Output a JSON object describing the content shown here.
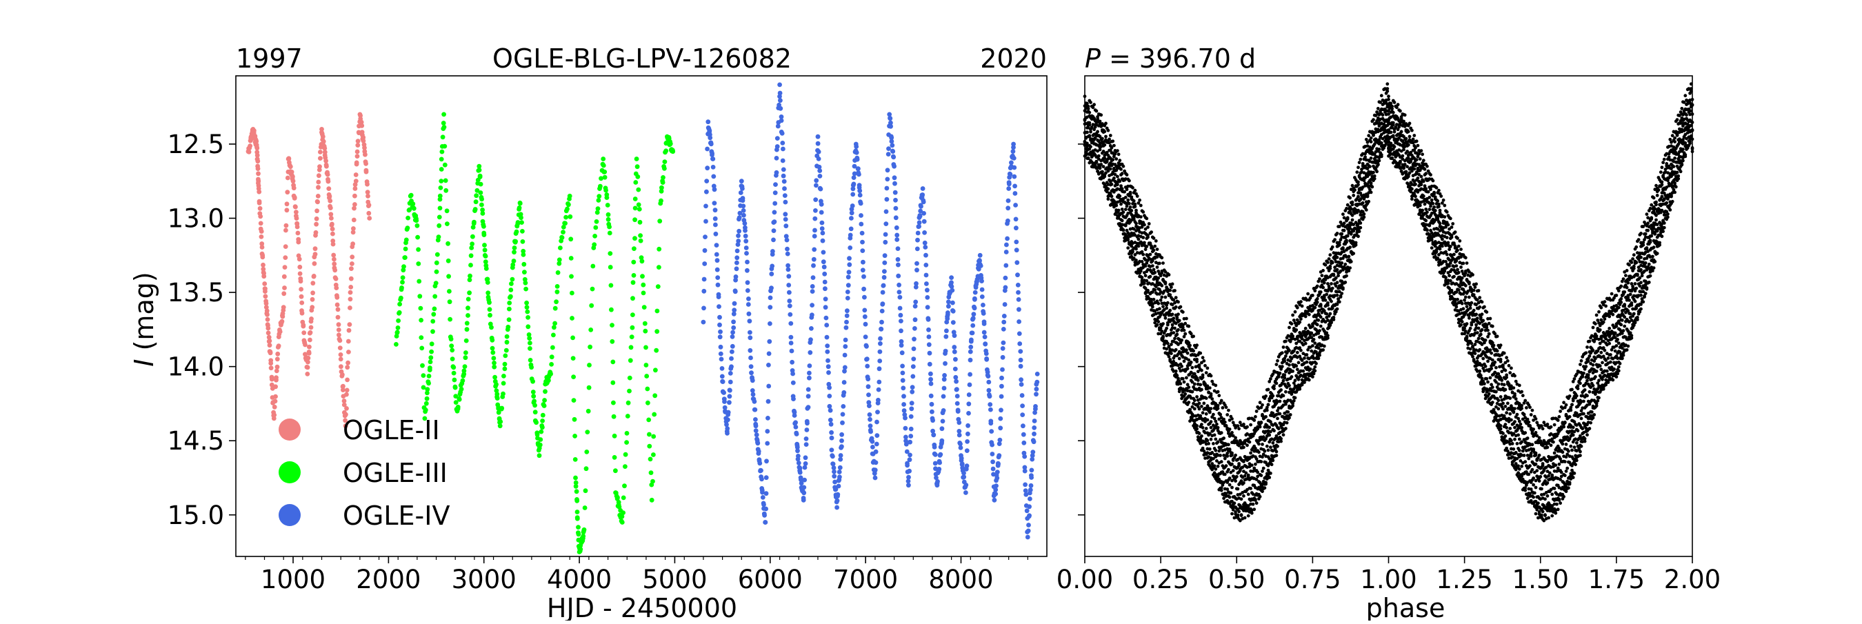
{
  "chart_data": [
    {
      "type": "scatter",
      "title": "OGLE-BLG-LPV-126082",
      "title_left": "1997",
      "title_right": "2020",
      "xlabel": "HJD - 2450000",
      "ylabel_italic": "I",
      "ylabel_rest": " (mag)",
      "xlim": [
        400,
        8900
      ],
      "ylim": [
        15.28,
        12.04
      ],
      "y_inverted": true,
      "grid": false,
      "legend_position": "lower-left",
      "x_ticks": [
        "1000",
        "2000",
        "3000",
        "4000",
        "5000",
        "6000",
        "7000",
        "8000"
      ],
      "y_ticks": [
        "12.5",
        "13.0",
        "13.5",
        "14.0",
        "14.5",
        "15.0"
      ],
      "series": [
        {
          "name": "OGLE-II",
          "color": "#f08080",
          "x": [
            530,
            580,
            620,
            640,
            680,
            720,
            760,
            800,
            850,
            900,
            950,
            1000,
            1050,
            1100,
            1150,
            1200,
            1250,
            1300,
            1350,
            1400,
            1450,
            1500,
            1550,
            1600,
            1650,
            1700,
            1750,
            1800
          ],
          "y": [
            12.55,
            12.4,
            12.52,
            12.8,
            13.25,
            13.6,
            13.9,
            14.35,
            13.8,
            13.6,
            12.6,
            12.75,
            13.1,
            13.7,
            14.05,
            13.6,
            12.95,
            12.4,
            12.65,
            13.0,
            13.45,
            13.95,
            14.4,
            13.5,
            12.8,
            12.3,
            12.55,
            13.0
          ]
        },
        {
          "name": "OGLE-III",
          "color": "#00ff00",
          "x": [
            2080,
            2150,
            2230,
            2300,
            2380,
            2450,
            2530,
            2580,
            2650,
            2720,
            2800,
            2870,
            2950,
            3000,
            3050,
            3120,
            3170,
            3250,
            3320,
            3380,
            3450,
            3520,
            3580,
            3650,
            3700,
            3800,
            3900,
            3960,
            4000,
            4050,
            4150,
            4250,
            4320,
            4380,
            4450,
            4550,
            4600,
            4680,
            4760,
            4850,
            4920,
            4980
          ],
          "y": [
            13.85,
            13.4,
            12.85,
            13.05,
            14.35,
            13.9,
            13.05,
            12.3,
            13.8,
            14.3,
            14.0,
            13.2,
            12.65,
            13.1,
            13.55,
            14.1,
            14.4,
            13.75,
            13.2,
            12.9,
            13.6,
            14.2,
            14.6,
            14.1,
            14.05,
            13.2,
            12.85,
            14.75,
            15.25,
            15.1,
            13.2,
            12.6,
            13.1,
            14.85,
            15.05,
            13.8,
            12.6,
            13.6,
            14.9,
            12.9,
            12.45,
            12.55
          ]
        },
        {
          "name": "OGLE-IV",
          "color": "#4169e1",
          "x": [
            5300,
            5350,
            5400,
            5450,
            5500,
            5550,
            5600,
            5650,
            5700,
            5750,
            5800,
            5850,
            5900,
            5950,
            6000,
            6050,
            6100,
            6150,
            6200,
            6250,
            6300,
            6350,
            6400,
            6450,
            6500,
            6550,
            6600,
            6650,
            6700,
            6750,
            6800,
            6850,
            6900,
            6950,
            7000,
            7050,
            7100,
            7150,
            7200,
            7250,
            7300,
            7350,
            7400,
            7450,
            7500,
            7550,
            7600,
            7650,
            7700,
            7750,
            7800,
            7850,
            7900,
            7950,
            8000,
            8050,
            8100,
            8150,
            8200,
            8250,
            8300,
            8350,
            8400,
            8450,
            8500,
            8550,
            8600,
            8650,
            8700,
            8750,
            8800
          ],
          "y": [
            13.7,
            12.35,
            12.6,
            13.4,
            14.1,
            14.45,
            13.9,
            13.3,
            12.75,
            13.2,
            14.0,
            14.4,
            14.7,
            15.05,
            13.6,
            12.9,
            12.1,
            12.8,
            13.5,
            14.3,
            14.65,
            14.9,
            14.2,
            13.4,
            12.45,
            13.1,
            13.9,
            14.6,
            14.95,
            14.5,
            13.7,
            13.0,
            12.5,
            12.9,
            13.8,
            14.4,
            14.75,
            13.9,
            13.3,
            12.3,
            12.65,
            13.45,
            14.2,
            14.8,
            14.0,
            13.1,
            12.8,
            13.6,
            14.35,
            14.8,
            14.5,
            13.7,
            13.4,
            14.1,
            14.6,
            14.85,
            13.9,
            13.5,
            13.25,
            13.8,
            14.2,
            14.9,
            14.6,
            13.7,
            12.8,
            12.5,
            13.5,
            14.4,
            15.15,
            14.6,
            14.05
          ]
        }
      ]
    },
    {
      "type": "scatter",
      "title_left_italic": "P",
      "title_left_rest": " = 396.70 d",
      "xlabel": "phase",
      "xlim": [
        0,
        2
      ],
      "ylim": [
        15.28,
        12.04
      ],
      "y_inverted": true,
      "grid": false,
      "x_ticks": [
        "0.00",
        "0.25",
        "0.50",
        "0.75",
        "1.00",
        "1.25",
        "1.50",
        "1.75",
        "2.00"
      ],
      "color": "#000000",
      "phase_curve": {
        "phase": [
          0.0,
          0.05,
          0.1,
          0.15,
          0.2,
          0.25,
          0.3,
          0.35,
          0.4,
          0.45,
          0.5,
          0.55,
          0.6,
          0.65,
          0.7,
          0.75,
          0.8,
          0.85,
          0.9,
          0.95,
          1.0
        ],
        "mag": [
          12.42,
          12.56,
          12.8,
          13.06,
          13.32,
          13.6,
          13.88,
          14.15,
          14.4,
          14.62,
          14.8,
          14.75,
          14.55,
          14.25,
          13.95,
          13.85,
          13.6,
          13.3,
          12.95,
          12.6,
          12.3
        ],
        "magnitude_spread": [
          -0.35,
          0.45
        ]
      }
    }
  ]
}
